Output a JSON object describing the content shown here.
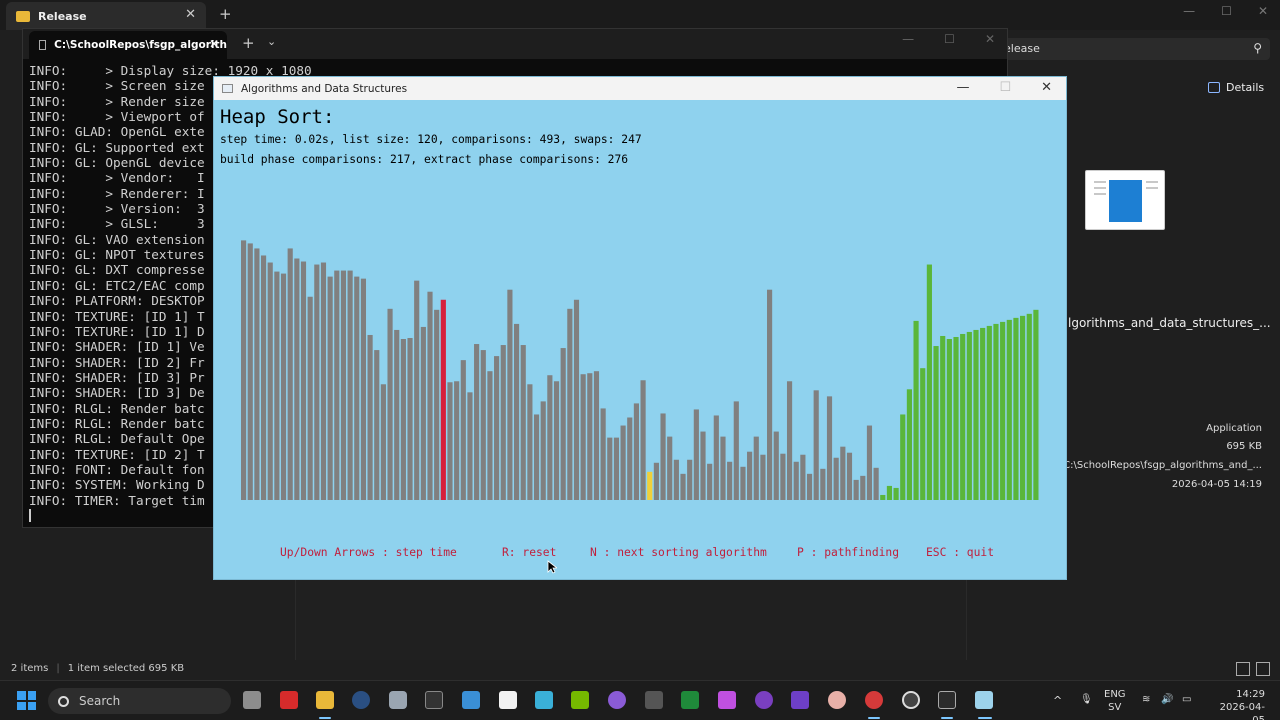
{
  "explorer": {
    "tab_title": "Release",
    "address_text": "elease",
    "details_label": "Details",
    "file_name": "lgorithms_and_data_structures_...",
    "file_type": "Application",
    "file_size": "695 KB",
    "file_path": "C:\\SchoolRepos\\fsgp_algorithms_and_...",
    "file_date": "2026-04-05 14:19",
    "status_items": "2 items",
    "status_selected": "1 item selected  695 KB"
  },
  "terminal": {
    "tab_title": "C:\\SchoolRepos\\fsgp_algorith",
    "lines": [
      "INFO:     > Display size: 1920 x 1080",
      "INFO:     > Screen size",
      "INFO:     > Render size",
      "INFO:     > Viewport of",
      "INFO: GLAD: OpenGL exte",
      "INFO: GL: Supported ext",
      "INFO: GL: OpenGL device",
      "INFO:     > Vendor:   I",
      "INFO:     > Renderer: I",
      "INFO:     > Version:  3",
      "INFO:     > GLSL:     3",
      "INFO: GL: VAO extension",
      "INFO: GL: NPOT textures",
      "INFO: GL: DXT compresse",
      "INFO: GL: ETC2/EAC comp",
      "INFO: PLATFORM: DESKTOP",
      "INFO: TEXTURE: [ID 1] T",
      "INFO: TEXTURE: [ID 1] D",
      "INFO: SHADER: [ID 1] Ve",
      "INFO: SHADER: [ID 2] Fr",
      "INFO: SHADER: [ID 3] Pr",
      "INFO: SHADER: [ID 3] De",
      "INFO: RLGL: Render batc",
      "INFO: RLGL: Render batc",
      "INFO: RLGL: Default Ope",
      "INFO: TEXTURE: [ID 2] T",
      "INFO: FONT: Default fon",
      "INFO: SYSTEM: Working D",
      "INFO: TIMER: Target tim"
    ]
  },
  "game": {
    "window_title": "Algorithms and Data Structures",
    "heading": "Heap Sort:",
    "stats_line1": "step time: 0.02s, list size: 120, comparisons: 493, swaps: 247",
    "stats_line2": "build phase comparisons: 217, extract phase comparisons: 276",
    "controls": {
      "step": "Up/Down Arrows : step time",
      "reset": "R: reset",
      "next": "N : next sorting algorithm",
      "path": "P : pathfinding",
      "quit": "ESC : quit"
    },
    "colors": {
      "background": "#8fd2ee",
      "bar": "#808080",
      "sorted": "#5ab63a",
      "compare": "#d6203c",
      "current": "#f0d03a",
      "control_text": "#c0203d"
    },
    "list_size": 120,
    "max_value": 320,
    "sorted_count": 24,
    "compare_index": 30,
    "current_index": 61,
    "bar_values": [
      258,
      255,
      250,
      243,
      236,
      227,
      225,
      250,
      240,
      237,
      202,
      234,
      236,
      222,
      228,
      228,
      228,
      222,
      220,
      164,
      149,
      115,
      190,
      169,
      160,
      161,
      218,
      172,
      207,
      189,
      199,
      117,
      118,
      139,
      107,
      155,
      149,
      128,
      143,
      154,
      209,
      175,
      154,
      115,
      85,
      98,
      124,
      118,
      151,
      190,
      199,
      125,
      126,
      128,
      91,
      62,
      62,
      74,
      82,
      96,
      119,
      28,
      37,
      86,
      63,
      40,
      26,
      40,
      90,
      68,
      36,
      84,
      63,
      38,
      98,
      33,
      48,
      63,
      45,
      209,
      68,
      46,
      118,
      38,
      45,
      26,
      109,
      31,
      103,
      42,
      53,
      47,
      20,
      24,
      74,
      32,
      5,
      14,
      12,
      85,
      110,
      178,
      131,
      234,
      153,
      163,
      160,
      162,
      165,
      167,
      169,
      171,
      173,
      175,
      177,
      179,
      181,
      183,
      185,
      189
    ]
  },
  "taskbar": {
    "search_label": "Search",
    "lang1": "ENG",
    "lang2": "SV",
    "time": "14:29",
    "date": "2026-04-05"
  }
}
